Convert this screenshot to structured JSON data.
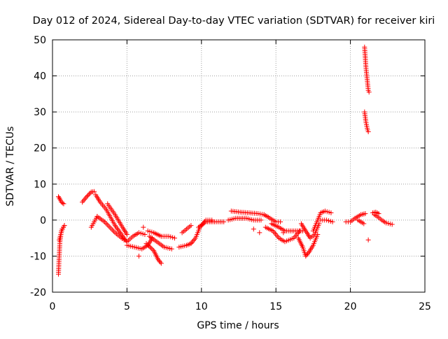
{
  "chart_data": {
    "type": "scatter",
    "title": "Day 012 of 2024, Sidereal Day-to-day VTEC variation (SDTVAR) for receiver kiri",
    "xlabel": "GPS time / hours",
    "ylabel": "SDTVAR / TECUs",
    "xlim": [
      0,
      25
    ],
    "ylim": [
      -20,
      50
    ],
    "xticks": [
      0,
      5,
      10,
      15,
      20,
      25
    ],
    "yticks": [
      -20,
      -10,
      0,
      10,
      20,
      30,
      40,
      50
    ],
    "xtick_labels": [
      "0",
      "5",
      "10",
      "15",
      "20",
      "25"
    ],
    "ytick_labels": [
      "-20",
      "-10",
      "0",
      "10",
      "20",
      "30",
      "40",
      "50"
    ],
    "grid": true,
    "marker": "+",
    "colors": {
      "points": "#ff0000",
      "grid": "#a0a0a0",
      "axis": "#000000"
    },
    "segments": [
      [
        [
          0.4,
          -15
        ],
        [
          0.45,
          -10
        ],
        [
          0.5,
          -6
        ],
        [
          0.6,
          -3
        ],
        [
          0.8,
          -1.5
        ]
      ],
      [
        [
          0.45,
          -5.5
        ],
        [
          0.55,
          -4
        ],
        [
          0.65,
          -2.5
        ],
        [
          0.8,
          -1.5
        ]
      ],
      [
        [
          0.4,
          6.5
        ],
        [
          0.5,
          5.8
        ],
        [
          0.6,
          5
        ],
        [
          0.75,
          4.5
        ]
      ],
      [
        [
          2.0,
          5.0
        ],
        [
          2.3,
          6.5
        ],
        [
          2.6,
          7.8
        ],
        [
          2.8,
          7.9
        ]
      ],
      [
        [
          2.6,
          -2
        ],
        [
          2.8,
          -0.5
        ],
        [
          3.0,
          1.0
        ]
      ],
      [
        [
          3.0,
          1.0
        ],
        [
          3.5,
          -0.5
        ],
        [
          4.2,
          -3.5
        ],
        [
          4.8,
          -5.5
        ]
      ],
      [
        [
          2.9,
          7.0
        ],
        [
          3.2,
          5.0
        ],
        [
          3.6,
          3.0
        ],
        [
          4.2,
          -1.5
        ],
        [
          4.8,
          -5.0
        ],
        [
          5.0,
          -6.0
        ]
      ],
      [
        [
          3.7,
          4.5
        ],
        [
          4.2,
          1.5
        ],
        [
          4.7,
          -2.0
        ],
        [
          5.0,
          -4.0
        ]
      ],
      [
        [
          5.0,
          -6.0
        ],
        [
          5.4,
          -4.5
        ],
        [
          5.8,
          -3.5
        ],
        [
          6.2,
          -4.0
        ]
      ],
      [
        [
          5.0,
          -7.0
        ],
        [
          5.5,
          -7.5
        ],
        [
          6.0,
          -8.0
        ],
        [
          6.4,
          -7.0
        ],
        [
          6.7,
          -5.0
        ]
      ],
      [
        [
          6.3,
          -6.5
        ],
        [
          6.8,
          -8.5
        ],
        [
          7.1,
          -11.0
        ],
        [
          7.3,
          -12.0
        ]
      ],
      [
        [
          6.5,
          -4.5
        ],
        [
          7.0,
          -6.0
        ],
        [
          7.5,
          -7.5
        ],
        [
          8.0,
          -8.0
        ]
      ],
      [
        [
          6.4,
          -3.0
        ],
        [
          6.8,
          -3.5
        ],
        [
          7.3,
          -4.5
        ],
        [
          7.8,
          -4.5
        ],
        [
          8.2,
          -5.0
        ]
      ],
      [
        [
          8.5,
          -7.5
        ],
        [
          9.0,
          -7.0
        ],
        [
          9.3,
          -6.5
        ]
      ],
      [
        [
          8.7,
          -3.5
        ],
        [
          9.0,
          -2.5
        ],
        [
          9.3,
          -1.5
        ]
      ],
      [
        [
          9.3,
          -6.5
        ],
        [
          9.6,
          -5.0
        ],
        [
          9.9,
          -2.0
        ],
        [
          10.3,
          0.0
        ],
        [
          10.7,
          0.0
        ]
      ],
      [
        [
          9.8,
          -2.0
        ],
        [
          10.3,
          -0.5
        ],
        [
          11.0,
          -0.5
        ],
        [
          11.5,
          -0.5
        ]
      ],
      [
        [
          12.0,
          2.5
        ],
        [
          12.6,
          2.2
        ],
        [
          13.2,
          2.0
        ],
        [
          13.8,
          1.8
        ],
        [
          14.2,
          1.5
        ]
      ],
      [
        [
          11.8,
          0.0
        ],
        [
          12.3,
          0.5
        ],
        [
          13.0,
          0.5
        ],
        [
          13.5,
          0.0
        ],
        [
          14.0,
          0.0
        ]
      ],
      [
        [
          14.2,
          1.5
        ],
        [
          14.5,
          0.8
        ],
        [
          14.8,
          0.0
        ],
        [
          15.0,
          -0.5
        ],
        [
          15.3,
          -0.5
        ]
      ],
      [
        [
          14.3,
          -2.0
        ],
        [
          14.8,
          -3.0
        ],
        [
          15.2,
          -5.0
        ],
        [
          15.6,
          -6.0
        ],
        [
          16.2,
          -5.0
        ],
        [
          16.6,
          -3.0
        ]
      ],
      [
        [
          14.7,
          -1.0
        ],
        [
          15.2,
          -2.0
        ],
        [
          15.6,
          -3.0
        ],
        [
          16.2,
          -3.0
        ],
        [
          16.8,
          -3.0
        ]
      ],
      [
        [
          16.5,
          -5.0
        ],
        [
          16.8,
          -7.5
        ],
        [
          17.0,
          -10.0
        ],
        [
          17.2,
          -9.0
        ],
        [
          17.5,
          -7.0
        ],
        [
          17.8,
          -4.0
        ]
      ],
      [
        [
          16.7,
          -1.0
        ],
        [
          17.0,
          -3.0
        ],
        [
          17.3,
          -5.0
        ],
        [
          17.6,
          -4.0
        ],
        [
          17.9,
          -1.0
        ]
      ],
      [
        [
          17.5,
          -3.0
        ],
        [
          17.8,
          0.0
        ],
        [
          18.0,
          2.0
        ],
        [
          18.3,
          2.5
        ],
        [
          18.7,
          2.0
        ]
      ],
      [
        [
          18.0,
          0.0
        ],
        [
          18.4,
          0.0
        ],
        [
          18.8,
          -0.5
        ]
      ],
      [
        [
          19.7,
          -0.5
        ],
        [
          20.0,
          -0.5
        ],
        [
          20.3,
          0.5
        ],
        [
          20.7,
          1.5
        ],
        [
          21.0,
          1.8
        ]
      ],
      [
        [
          20.5,
          0.0
        ],
        [
          20.7,
          -0.5
        ],
        [
          20.9,
          -1.0
        ]
      ],
      [
        [
          21.6,
          1.5
        ],
        [
          21.8,
          1.0
        ],
        [
          22.1,
          0.0
        ],
        [
          22.4,
          -0.8
        ],
        [
          22.8,
          -1.2
        ]
      ],
      [
        [
          21.5,
          2.0
        ],
        [
          21.7,
          2.2
        ],
        [
          21.9,
          1.8
        ]
      ],
      [
        [
          20.95,
          48.0
        ],
        [
          21.0,
          45.0
        ],
        [
          21.05,
          42.0
        ],
        [
          21.1,
          40.0
        ],
        [
          21.15,
          38.0
        ],
        [
          21.2,
          36.0
        ],
        [
          21.25,
          35.5
        ]
      ],
      [
        [
          20.95,
          30.0
        ],
        [
          21.0,
          28.5
        ],
        [
          21.05,
          27.0
        ],
        [
          21.1,
          26.0
        ],
        [
          21.15,
          25.0
        ],
        [
          21.2,
          24.5
        ]
      ]
    ],
    "outliers": [
      [
        5.8,
        -10.0
      ],
      [
        6.1,
        -2.0
      ],
      [
        13.5,
        -2.5
      ],
      [
        13.9,
        -3.5
      ],
      [
        15.5,
        -3.5
      ],
      [
        21.2,
        -5.5
      ]
    ]
  }
}
